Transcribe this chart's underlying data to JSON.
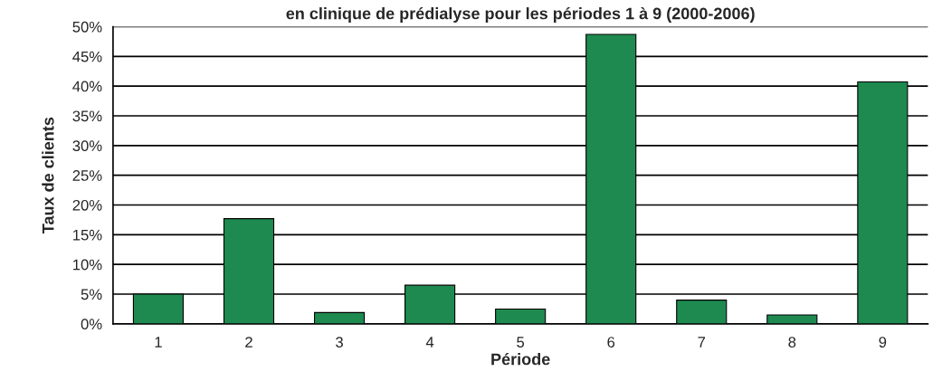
{
  "chart_data": {
    "type": "bar",
    "title": "en clinique de prédialyse pour les périodes 1 à 9 (2000-2006)",
    "xlabel": "Période",
    "ylabel": "Taux de clients",
    "categories": [
      "1",
      "2",
      "3",
      "4",
      "5",
      "6",
      "7",
      "8",
      "9"
    ],
    "values": [
      5.0,
      17.7,
      1.9,
      6.5,
      2.5,
      48.7,
      4.0,
      1.5,
      40.7
    ],
    "color": "#1e8a50",
    "ylim": [
      0,
      50
    ],
    "yticks": [
      {
        "value": 0,
        "label": "0%"
      },
      {
        "value": 5,
        "label": "5%"
      },
      {
        "value": 10,
        "label": "10%"
      },
      {
        "value": 15,
        "label": "15%"
      },
      {
        "value": 20,
        "label": "20%"
      },
      {
        "value": 25,
        "label": "25%"
      },
      {
        "value": 30,
        "label": "30%"
      },
      {
        "value": 35,
        "label": "35%"
      },
      {
        "value": 40,
        "label": "40%"
      },
      {
        "value": 45,
        "label": "45%"
      },
      {
        "value": 50,
        "label": "50%"
      }
    ],
    "grid": "y",
    "legend": false
  }
}
